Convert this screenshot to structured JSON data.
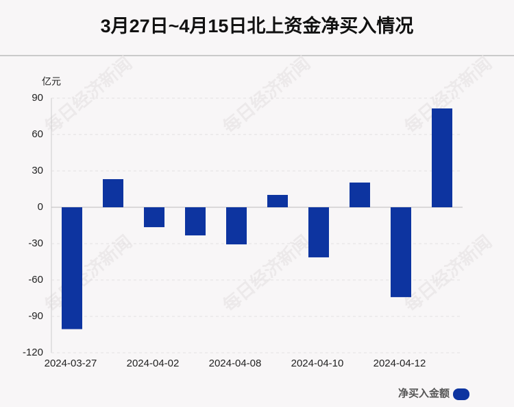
{
  "chart_data": {
    "type": "bar",
    "title": "3月27日~4月15日北上资金净买入情况",
    "y_unit": "亿元",
    "watermark": "每日经济新闻",
    "categories": [
      "2024-03-27",
      null,
      "2024-04-02",
      null,
      "2024-04-08",
      null,
      "2024-04-10",
      null,
      "2024-04-12",
      null
    ],
    "series": [
      {
        "name": "净买入金额",
        "color": "#0d34a0",
        "values": [
          -100.5,
          23.2,
          -16.4,
          -23.2,
          -30.6,
          10.2,
          -41.3,
          20.4,
          -74.1,
          81.5
        ]
      }
    ],
    "ylim": [
      -120,
      90
    ],
    "yticks": [
      -120,
      -90,
      -60,
      -30,
      0,
      30,
      60,
      90
    ],
    "grid": true
  }
}
